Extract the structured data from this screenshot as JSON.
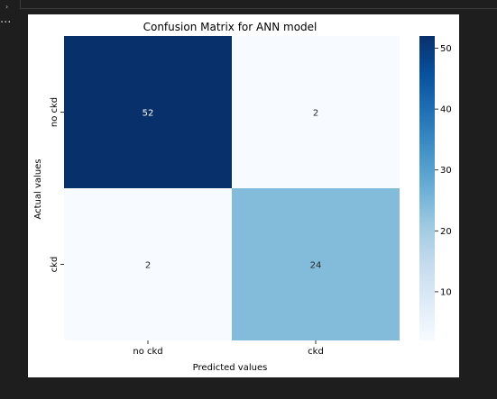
{
  "notebook": {
    "collapse_icon": "chevron-right-icon",
    "ellipsis": "..."
  },
  "chart_data": {
    "type": "heatmap",
    "title": "Confusion Matrix for ANN model",
    "xlabel": "Predicted values",
    "ylabel": "Actual values",
    "x_categories": [
      "no ckd",
      "ckd"
    ],
    "y_categories": [
      "no ckd",
      "ckd"
    ],
    "values": [
      [
        52,
        2
      ],
      [
        2,
        24
      ]
    ],
    "colormap": "Blues",
    "vmin": 2,
    "vmax": 52,
    "colorbar_ticks": [
      10,
      20,
      30,
      40,
      50
    ],
    "annotations": true
  }
}
